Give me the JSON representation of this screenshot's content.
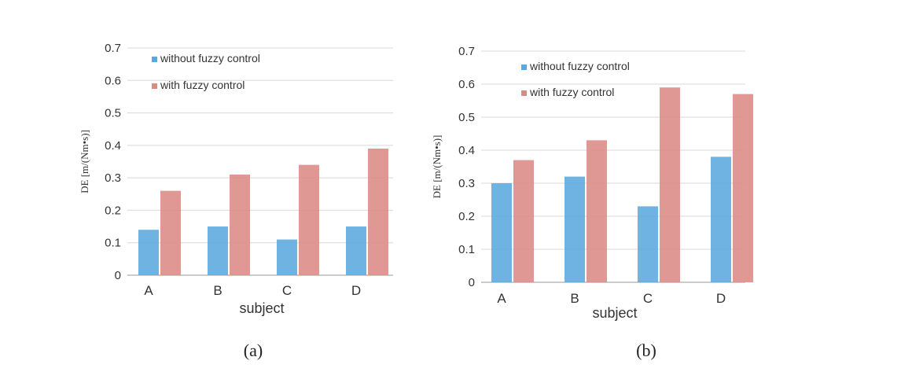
{
  "chart_data": [
    {
      "type": "bar",
      "panel_label": "(a)",
      "categories": [
        "A",
        "B",
        "C",
        "D"
      ],
      "series": [
        {
          "name": "without fuzzy control",
          "values": [
            0.14,
            0.15,
            0.11,
            0.15
          ],
          "color": "#5aa9de"
        },
        {
          "name": "with fuzzy control",
          "values": [
            0.26,
            0.31,
            0.34,
            0.39
          ],
          "color": "#dc8a86"
        }
      ],
      "xlabel": "subject",
      "ylabel": "DE [m/(Nm•s)]",
      "ylim": [
        0,
        0.7
      ],
      "yticks": [
        "0",
        "0.1",
        "0.2",
        "0.3",
        "0.4",
        "0.5",
        "0.6",
        "0.7"
      ],
      "grid": true,
      "legend": "top-left"
    },
    {
      "type": "bar",
      "panel_label": "(b)",
      "categories": [
        "A",
        "B",
        "C",
        "D"
      ],
      "series": [
        {
          "name": "without fuzzy control",
          "values": [
            0.3,
            0.32,
            0.23,
            0.38
          ],
          "color": "#5aa9de"
        },
        {
          "name": "with fuzzy control",
          "values": [
            0.37,
            0.43,
            0.59,
            0.57
          ],
          "color": "#dc8a86"
        }
      ],
      "xlabel": "subject",
      "ylabel": "DE [m/(Nm•s)]",
      "ylim": [
        0,
        0.7
      ],
      "yticks": [
        "0",
        "0.1",
        "0.2",
        "0.3",
        "0.4",
        "0.5",
        "0.6",
        "0.7"
      ],
      "grid": true,
      "legend": "top-left"
    }
  ]
}
